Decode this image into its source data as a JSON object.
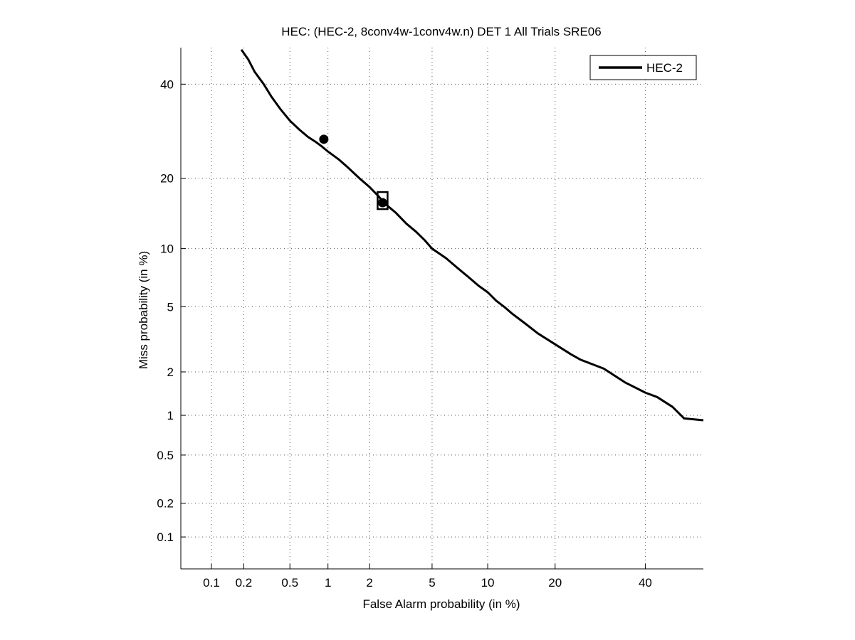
{
  "chart_data": {
    "type": "line",
    "title": "HEC: (HEC-2, 8conv4w-1conv4w.n) DET 1 All Trials SRE06",
    "xlabel": "False Alarm probability (in %)",
    "ylabel": "Miss probability (in %)",
    "x_scale": "probit",
    "y_scale": "probit",
    "xlim": [
      0.05,
      55
    ],
    "ylim": [
      0.05,
      49
    ],
    "x_ticks": [
      0.1,
      0.2,
      0.5,
      1,
      2,
      5,
      10,
      20,
      40
    ],
    "x_tick_labels": [
      "0.1",
      "0.2",
      "0.5",
      "1",
      "2",
      "5",
      "10",
      "20",
      "40"
    ],
    "y_ticks": [
      0.1,
      0.2,
      0.5,
      1,
      2,
      5,
      10,
      20,
      40
    ],
    "y_tick_labels": [
      "0.1",
      "0.2",
      "0.5",
      "1",
      "2",
      "5",
      "10",
      "20",
      "40"
    ],
    "grid": true,
    "legend_position": "top-right",
    "series": [
      {
        "name": "HEC-2",
        "color": "#000000",
        "x": [
          0.19,
          0.22,
          0.25,
          0.3,
          0.35,
          0.42,
          0.5,
          0.6,
          0.7,
          0.8,
          0.9,
          1.0,
          1.2,
          1.4,
          1.7,
          2.0,
          2.3,
          2.5,
          3.0,
          3.5,
          4.0,
          4.5,
          5.0,
          6.0,
          7.0,
          8.0,
          9.0,
          10.0,
          11.0,
          12.0,
          13.0,
          15.0,
          17.0,
          20.0,
          23.0,
          25.0,
          30.0,
          35.0,
          40.0,
          43.0,
          47.0,
          50.0,
          55.0
        ],
        "y": [
          48.5,
          46,
          43,
          40,
          37,
          34,
          31.5,
          29.5,
          28,
          27,
          26,
          25,
          23.5,
          22,
          20,
          18.5,
          17,
          16,
          14.5,
          13,
          12,
          11,
          10,
          9,
          8,
          7.2,
          6.5,
          6,
          5.4,
          5.0,
          4.6,
          4.0,
          3.5,
          3.0,
          2.6,
          2.4,
          2.1,
          1.7,
          1.45,
          1.35,
          1.15,
          0.95,
          0.92
        ]
      }
    ],
    "markers": [
      {
        "shape": "circle",
        "x": 0.93,
        "y": 27.5
      },
      {
        "shape": "square",
        "x": 2.45,
        "y": 16.0
      },
      {
        "shape": "circle",
        "x": 2.45,
        "y": 16.0
      }
    ]
  }
}
